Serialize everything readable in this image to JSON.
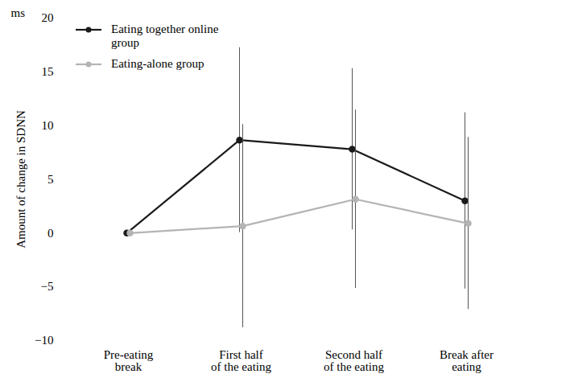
{
  "chart_data": {
    "type": "line",
    "y_label": "Amount of change in SDNN",
    "annotations": [
      "ms"
    ],
    "categories": [
      "Pre-eating\nbreak",
      "First half\nof the eating",
      "Second half\nof the eating",
      "Break after\neating"
    ],
    "series": [
      {
        "name": "Eating together online\ngroup",
        "color": "#1a1a1a",
        "marker": "circle",
        "values": [
          0,
          8.65,
          7.8,
          3.0
        ],
        "error": [
          0,
          8.6,
          7.5,
          8.2
        ]
      },
      {
        "name": "Eating-alone group",
        "color": "#b4b4b4",
        "marker": "circle",
        "values": [
          0,
          0.65,
          3.15,
          0.9
        ],
        "error": [
          0,
          9.45,
          8.3,
          8.0
        ]
      }
    ],
    "ylim": [
      -10,
      20
    ],
    "yticks": [
      -10,
      -5,
      0,
      5,
      10,
      15,
      20
    ],
    "legend": "upper left",
    "grid": false
  }
}
